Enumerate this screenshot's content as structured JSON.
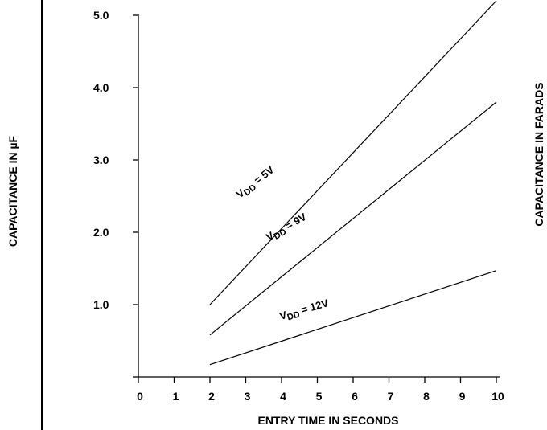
{
  "chart_data": {
    "type": "line",
    "xlabel": "ENTRY TIME IN SECONDS",
    "ylabel": "CAPACITANCE IN  µF",
    "ylabel_right": "CAPACITANCE IN FARADS",
    "xlim": [
      0,
      10
    ],
    "ylim": [
      0,
      5.0
    ],
    "x_ticks": [
      "0",
      "1",
      "2",
      "3",
      "4",
      "5",
      "6",
      "7",
      "8",
      "9",
      "10"
    ],
    "y_ticks": [
      "1.0",
      "2.0",
      "3.0",
      "4.0",
      "5.0"
    ],
    "grid": false,
    "series": [
      {
        "name": "VDD = 5V",
        "label_main": "V",
        "label_sub": "DD",
        "label_rest": " = 5V",
        "x": [
          2,
          10
        ],
        "y": [
          1.0,
          5.2
        ]
      },
      {
        "name": "VDD = 9V",
        "label_main": "V",
        "label_sub": "DD",
        "label_rest": " = 9V",
        "x": [
          2,
          10
        ],
        "y": [
          0.58,
          3.8
        ]
      },
      {
        "name": "VDD = 12V",
        "label_main": "V",
        "label_sub": "DD",
        "label_rest": " = 12V",
        "x": [
          2,
          10
        ],
        "y": [
          0.17,
          1.47
        ]
      }
    ]
  }
}
